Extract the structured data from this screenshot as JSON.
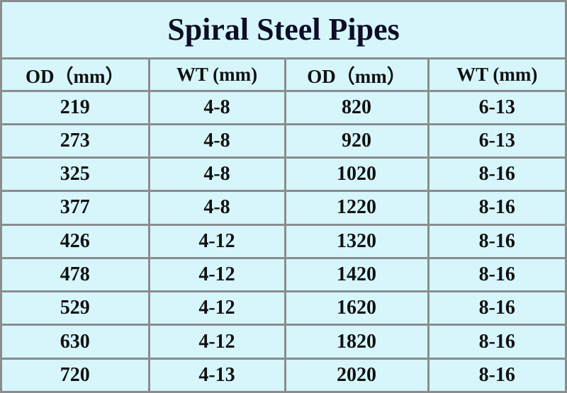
{
  "table": {
    "title": "Spiral Steel Pipes",
    "header": [
      "OD（mm）",
      "WT (mm)",
      "OD（mm）",
      "WT (mm)"
    ],
    "rows": [
      [
        "219",
        "4-8",
        "820",
        "6-13"
      ],
      [
        "273",
        "4-8",
        "920",
        "6-13"
      ],
      [
        "325",
        "4-8",
        "1020",
        "8-16"
      ],
      [
        "377",
        "4-8",
        "1220",
        "8-16"
      ],
      [
        "426",
        "4-12",
        "1320",
        "8-16"
      ],
      [
        "478",
        "4-12",
        "1420",
        "8-16"
      ],
      [
        "529",
        "4-12",
        "1620",
        "8-16"
      ],
      [
        "630",
        "4-12",
        "1820",
        "8-16"
      ],
      [
        "720",
        "4-13",
        "2020",
        "8-16"
      ]
    ]
  }
}
